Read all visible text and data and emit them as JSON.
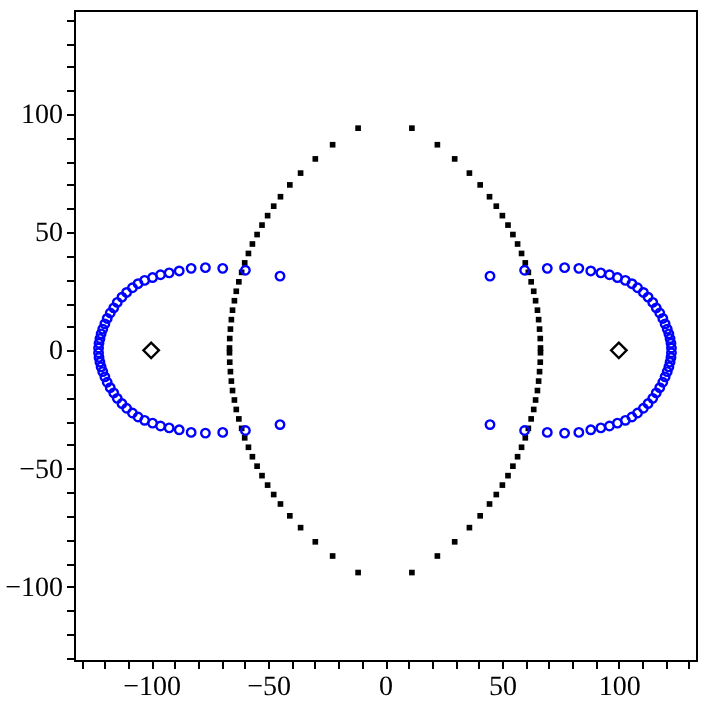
{
  "chart_data": {
    "type": "scatter",
    "xlim": [
      -133,
      133
    ],
    "ylim": [
      -131,
      144
    ],
    "xticks": [
      {
        "value": -130,
        "label": null
      },
      {
        "value": -120,
        "label": null
      },
      {
        "value": -110,
        "label": null
      },
      -100,
      {
        "value": -90,
        "label": null
      },
      {
        "value": -80,
        "label": null
      },
      {
        "value": -70,
        "label": null
      },
      {
        "value": -60,
        "label": null
      },
      -50,
      {
        "value": -40,
        "label": null
      },
      {
        "value": -30,
        "label": null
      },
      {
        "value": -20,
        "label": null
      },
      {
        "value": -10,
        "label": null
      },
      0,
      {
        "value": 10,
        "label": null
      },
      {
        "value": 20,
        "label": null
      },
      {
        "value": 30,
        "label": null
      },
      {
        "value": 40,
        "label": null
      },
      50,
      {
        "value": 60,
        "label": null
      },
      {
        "value": 70,
        "label": null
      },
      {
        "value": 80,
        "label": null
      },
      {
        "value": 90,
        "label": null
      },
      100,
      {
        "value": 110,
        "label": null
      },
      {
        "value": 120,
        "label": null
      },
      {
        "value": 130,
        "label": null
      }
    ],
    "yticks": [
      {
        "value": -130,
        "label": null
      },
      {
        "value": -120,
        "label": null
      },
      {
        "value": -110,
        "label": null
      },
      -100,
      {
        "value": -90,
        "label": null
      },
      {
        "value": -80,
        "label": null
      },
      {
        "value": -70,
        "label": null
      },
      {
        "value": -60,
        "label": null
      },
      -50,
      {
        "value": -40,
        "label": null
      },
      {
        "value": -30,
        "label": null
      },
      {
        "value": -20,
        "label": null
      },
      {
        "value": -10,
        "label": null
      },
      0,
      {
        "value": 10,
        "label": null
      },
      {
        "value": 20,
        "label": null
      },
      {
        "value": 30,
        "label": null
      },
      {
        "value": 40,
        "label": null
      },
      50,
      {
        "value": 60,
        "label": null
      },
      {
        "value": 70,
        "label": null
      },
      {
        "value": 80,
        "label": null
      },
      {
        "value": 90,
        "label": null
      },
      100,
      {
        "value": 110,
        "label": null
      },
      {
        "value": 120,
        "label": null
      },
      {
        "value": 130,
        "label": null
      },
      {
        "value": 140,
        "label": null
      }
    ],
    "grid": false,
    "series": [
      {
        "color": "#000000",
        "marker": "square",
        "x": [
          -11.5,
          -22.4,
          -29.8,
          -36.1,
          -40.7,
          -44.7,
          -47.6,
          -50.2,
          -52.6,
          -54.7,
          -56.7,
          -58.4,
          -60.0,
          -61.3,
          -62.5,
          -63.6,
          -64.4,
          -65.2,
          -65.7,
          -66.1,
          -66.4,
          -66.5,
          -66.5,
          -66.4,
          -66.1,
          -65.7,
          -65.2,
          -64.4,
          -63.6,
          -62.5,
          -61.3,
          -60.0,
          -58.4,
          -56.7,
          -54.7,
          -52.6,
          -50.2,
          -47.6,
          -44.7,
          -40.7,
          -36.1,
          -29.8,
          -22.4,
          -11.5,
          11.5,
          22.4,
          29.8,
          36.1,
          40.7,
          44.7,
          47.6,
          50.2,
          52.6,
          54.7,
          56.7,
          58.4,
          60.0,
          61.3,
          62.5,
          63.6,
          64.4,
          65.2,
          65.7,
          66.1,
          66.4,
          66.5,
          66.5,
          66.4,
          66.1,
          65.7,
          65.2,
          64.4,
          63.6,
          62.5,
          61.3,
          60.0,
          58.4,
          56.7,
          54.7,
          52.6,
          50.2,
          47.6,
          44.7,
          40.7,
          36.1,
          29.8,
          22.4,
          11.5
        ],
        "values": [
          94,
          87,
          81,
          75,
          70,
          65,
          61,
          57,
          53,
          49,
          45,
          41,
          37,
          33,
          29,
          25,
          21,
          17,
          13,
          9,
          5,
          1,
          -1,
          -5,
          -9,
          -13,
          -17,
          -21,
          -25,
          -29,
          -33,
          -37,
          -41,
          -45,
          -49,
          -53,
          -57,
          -61,
          -65,
          -70,
          -75,
          -81,
          -87,
          -94,
          94,
          87,
          81,
          75,
          70,
          65,
          61,
          57,
          53,
          49,
          45,
          41,
          37,
          33,
          29,
          25,
          21,
          17,
          13,
          9,
          5,
          1,
          -1,
          -5,
          -9,
          -13,
          -17,
          -21,
          -25,
          -29,
          -33,
          -37,
          -41,
          -45,
          -49,
          -53,
          -57,
          -61,
          -65,
          -70,
          -75,
          -81,
          -87,
          -94
        ]
      },
      {
        "color": "#0000ff",
        "marker": "circle",
        "x": [
          -44.9,
          -59.7,
          -69.4,
          -76.8,
          -82.9,
          -88,
          -92.3,
          -96,
          -99.4,
          -102.8,
          -105.6,
          -108,
          -110.5,
          -112.5,
          -114.5,
          -116,
          -117.5,
          -118.8,
          -119.8,
          -120.7,
          -121.4,
          -121.9,
          -122.3,
          -122.5,
          -122.5,
          -122.3,
          -121.9,
          -121.4,
          -120.7,
          -119.8,
          -118.8,
          -117.5,
          -116,
          -114.5,
          -112.5,
          -110.5,
          -108,
          -105.6,
          -102.8,
          -99.4,
          -96,
          -92.3,
          -88,
          -82.9,
          -76.8,
          -69.4,
          -59.7,
          -44.9,
          44.9,
          59.7,
          69.4,
          76.8,
          82.9,
          88,
          92.3,
          96,
          99.4,
          102.8,
          105.6,
          108,
          110.5,
          112.5,
          114.5,
          116,
          117.5,
          118.8,
          119.8,
          120.7,
          121.4,
          121.9,
          122.3,
          122.5,
          122.5,
          122.3,
          121.9,
          121.4,
          120.7,
          119.8,
          118.8,
          117.5,
          116,
          114.5,
          112.5,
          110.5,
          108,
          105.6,
          102.8,
          99.4,
          96,
          92.3,
          88,
          82.9,
          76.8,
          69.4,
          59.7,
          44.9
        ],
        "values": [
          31.4,
          33.9,
          34.7,
          35,
          34.7,
          33.6,
          32.8,
          32,
          30.8,
          29.6,
          28.2,
          26.5,
          24.5,
          22.5,
          20.3,
          18,
          15.8,
          13.5,
          11.2,
          9,
          7,
          5,
          3,
          1,
          -1,
          -3,
          -5,
          -7,
          -9,
          -11.2,
          -13.5,
          -15.8,
          -18,
          -20.3,
          -22.5,
          -24.5,
          -26.5,
          -28.2,
          -29.6,
          -30.8,
          -32,
          -32.8,
          -33.6,
          -34.7,
          -35,
          -34.7,
          -33.9,
          -31.4,
          31.4,
          33.9,
          34.7,
          35,
          34.7,
          33.6,
          32.8,
          32,
          30.8,
          29.6,
          28.2,
          26.5,
          24.5,
          22.5,
          20.3,
          18,
          15.8,
          13.5,
          11.2,
          9,
          7,
          5,
          3,
          1,
          -1,
          -3,
          -5,
          -7,
          -9,
          -11.2,
          -13.5,
          -15.8,
          -18,
          -20.3,
          -22.5,
          -24.5,
          -26.5,
          -28.2,
          -29.6,
          -30.8,
          -32,
          -32.8,
          -33.6,
          -34.7,
          -35,
          -34.7,
          -33.9,
          -31.4
        ]
      },
      {
        "color": "#000000",
        "marker": "diamond",
        "x": [
          -100,
          100
        ],
        "values": [
          0,
          0
        ]
      }
    ]
  }
}
